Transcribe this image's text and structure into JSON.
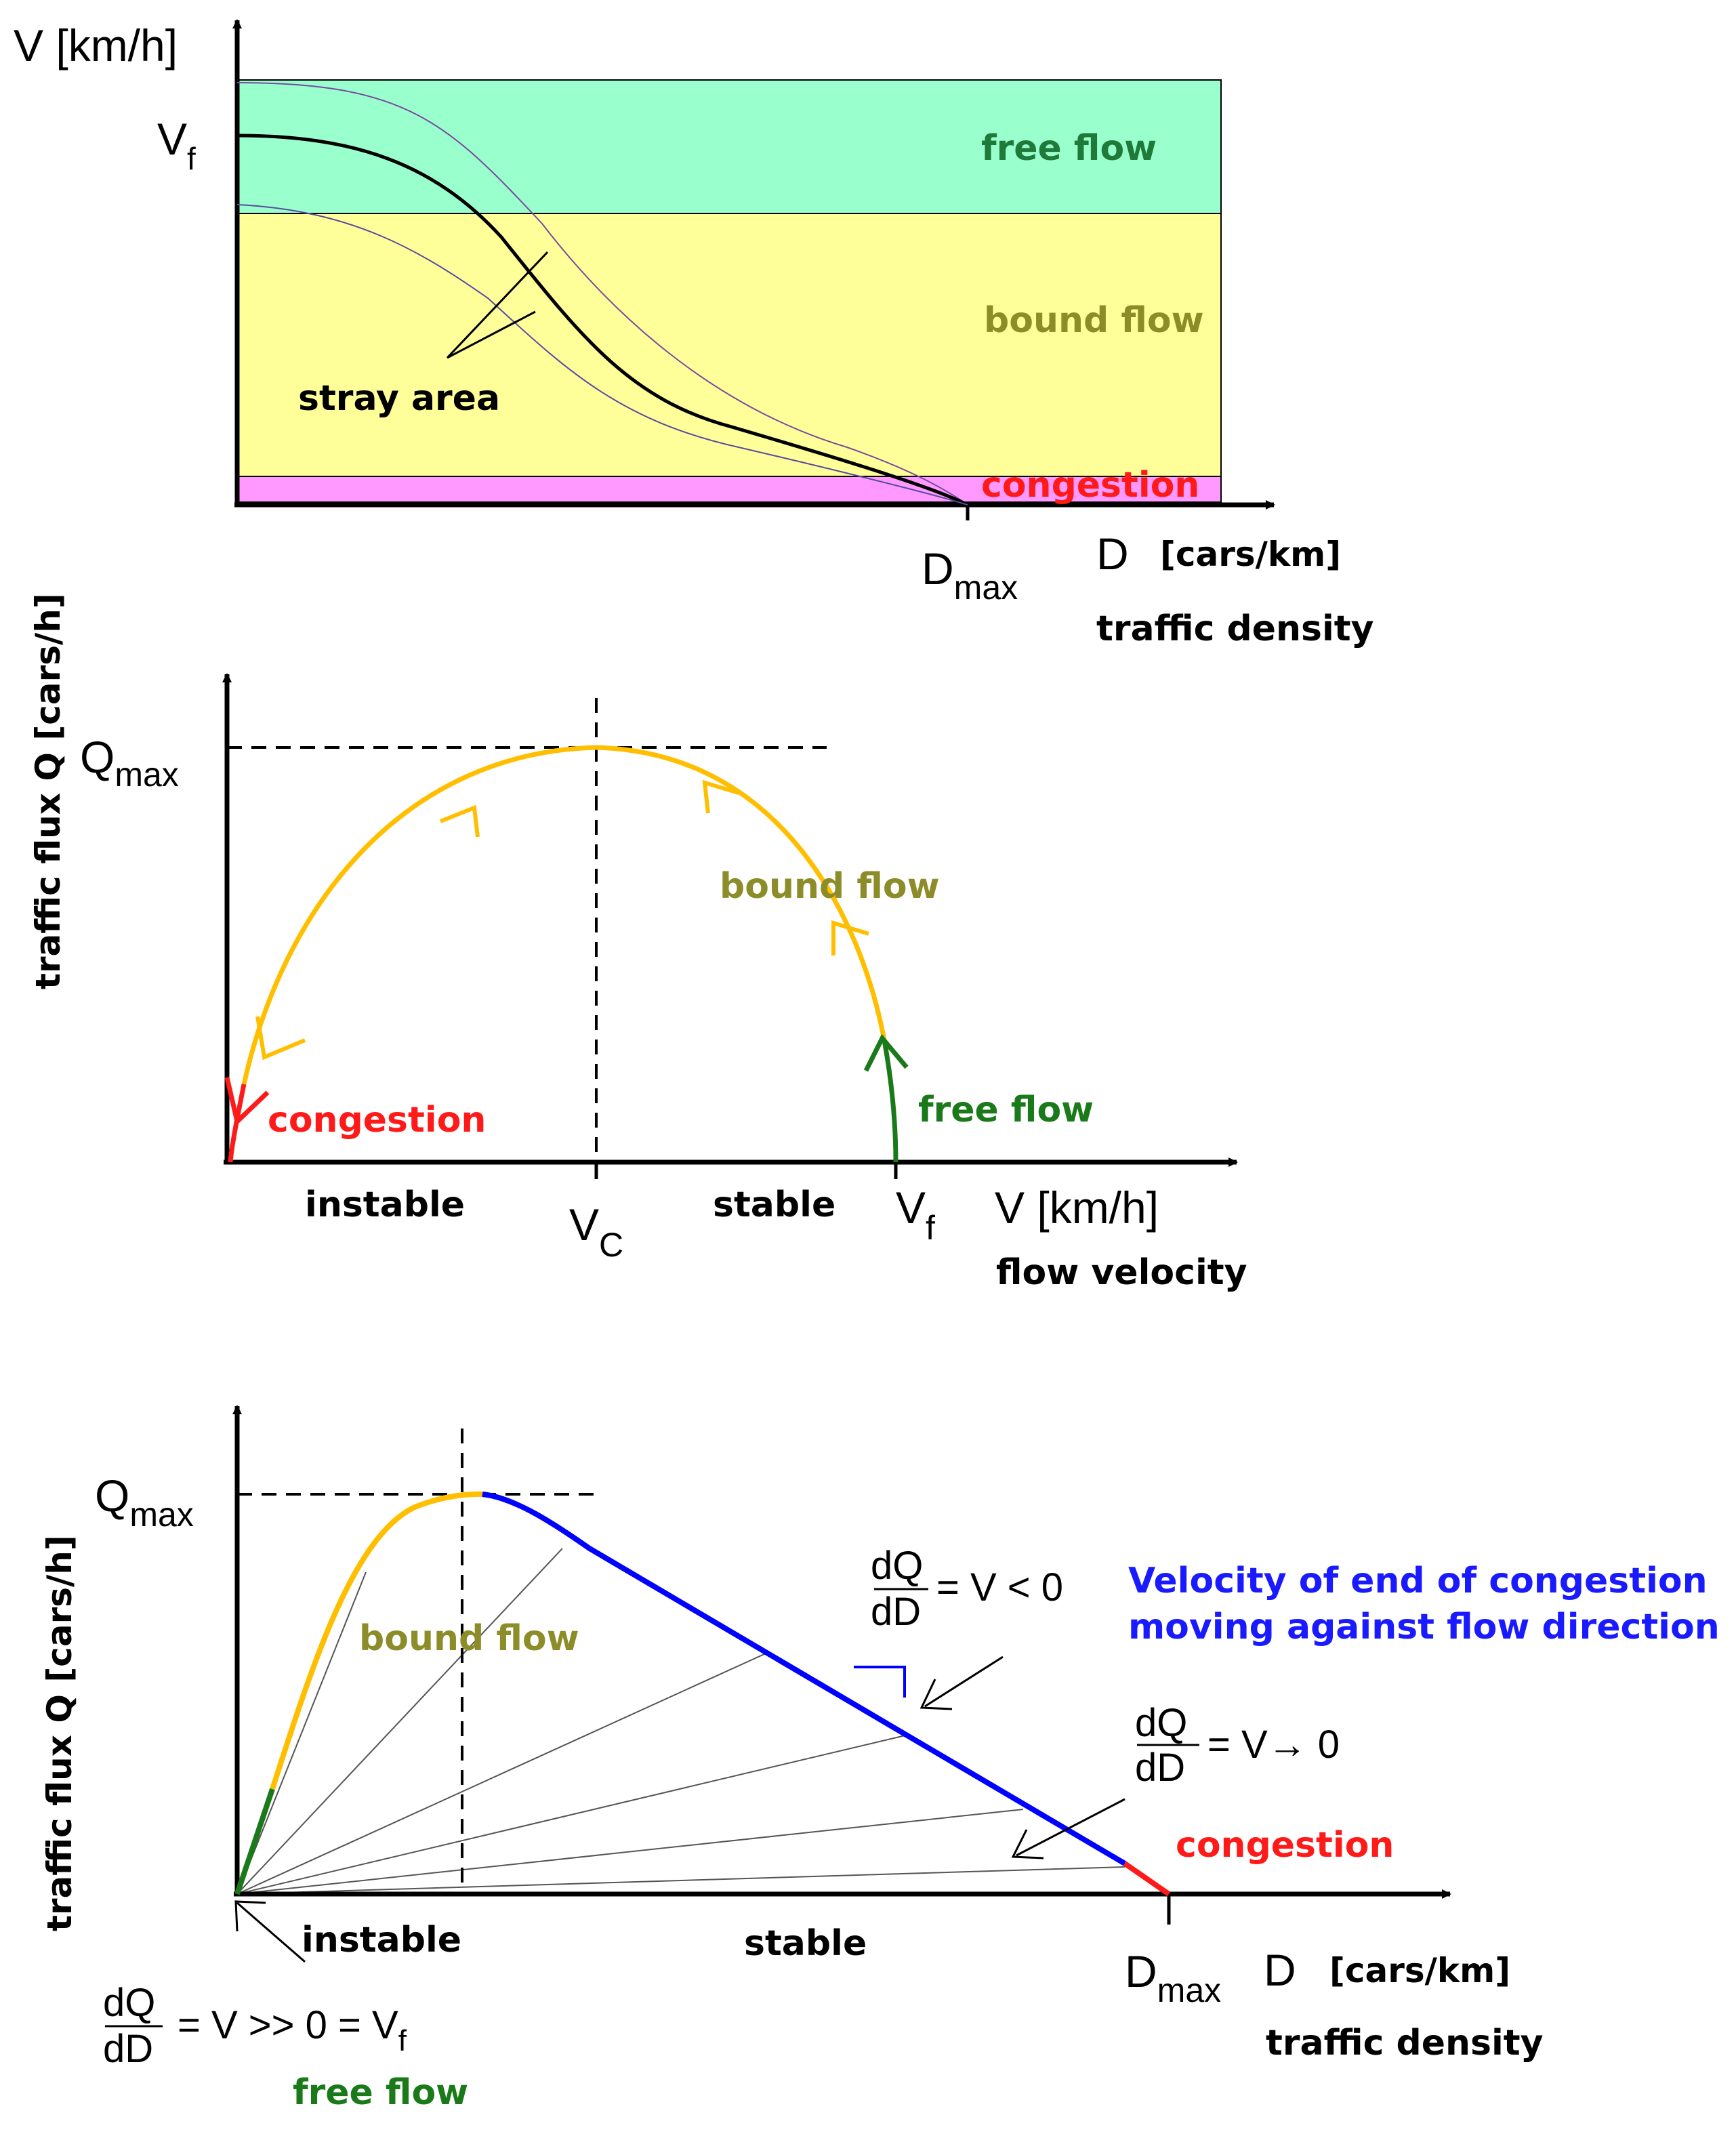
{
  "colors": {
    "free_flow_band": "#99ffcc",
    "bound_flow_band": "#ffff99",
    "congestion_band": "#ff99ff",
    "free_flow_text": "#1f7a3a",
    "bound_flow_text": "#8c8c28",
    "congestion_text": "#ff1a1a",
    "orange_curve": "#ffbf00",
    "green_curve": "#1a7a1a",
    "red_curve": "#ff1a1a",
    "blue_line": "#0000ff",
    "note_text": "#1a1aff"
  },
  "panel1": {
    "y_axis_label": "V [km/h]",
    "vf_main": "V",
    "vf_sub": "f",
    "band_free_flow": "free flow",
    "band_bound_flow": "bound flow",
    "band_congestion": "congestion",
    "stray_area": "stray area",
    "dmax_main": "D",
    "dmax_sub": "max",
    "x_axis_label": "D",
    "x_axis_unit": "[cars/km]",
    "x_axis_caption": "traffic density"
  },
  "panel2": {
    "y_axis_label": "traffic flux Q [cars/h]",
    "qmax_main": "Q",
    "qmax_sub": "max",
    "bound_flow": "bound flow",
    "free_flow": "free flow",
    "congestion": "congestion",
    "instable": "instable",
    "stable": "stable",
    "vc_main": "V",
    "vc_sub": "C",
    "vf_main": "V",
    "vf_sub": "f",
    "x_axis_label": "V [km/h]",
    "x_axis_caption": "flow velocity"
  },
  "panel3": {
    "y_axis_label": "traffic flux Q [cars/h]",
    "qmax_main": "Q",
    "qmax_sub": "max",
    "bound_flow": "bound flow",
    "congestion": "congestion",
    "instable": "instable",
    "stable": "stable",
    "dmax_main": "D",
    "dmax_sub": "max",
    "x_axis_label": "D",
    "x_axis_unit": "[cars/km]",
    "x_axis_caption": "traffic density",
    "frac_num": "dQ",
    "frac_den": "dD",
    "eq_negative": "= V < 0",
    "eq_zero": "= V→ 0",
    "eq_positive": "= V >> 0 = V",
    "eq_positive_sub": "f",
    "free_flow": "free flow",
    "note_line1": "Velocity of end of congestion",
    "note_line2": "moving against flow direction"
  }
}
